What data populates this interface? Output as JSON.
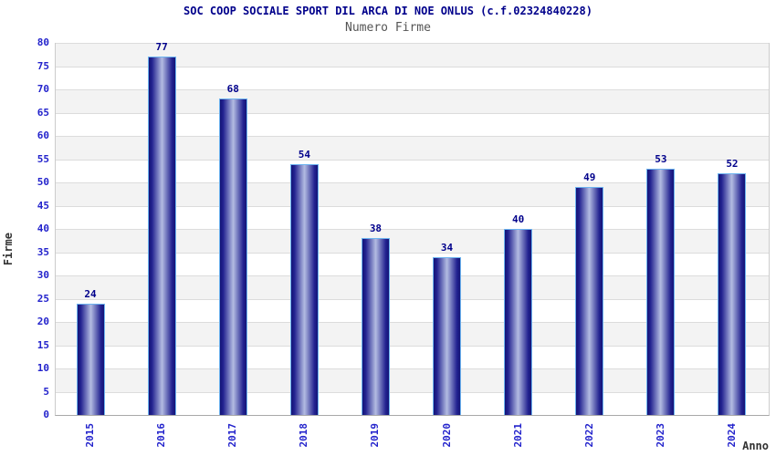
{
  "chart_data": {
    "type": "bar",
    "title": "SOC COOP SOCIALE SPORT DIL ARCA DI NOE ONLUS (c.f.02324840228)",
    "subtitle": "Numero Firme",
    "xlabel": "Anno",
    "ylabel": "Firme",
    "categories": [
      "2015",
      "2016",
      "2017",
      "2018",
      "2019",
      "2020",
      "2021",
      "2022",
      "2023",
      "2024"
    ],
    "values": [
      24,
      77,
      68,
      54,
      38,
      34,
      40,
      49,
      53,
      52
    ],
    "ylim": [
      0,
      80
    ],
    "ytick_step": 5,
    "yticks": [
      0,
      5,
      10,
      15,
      20,
      25,
      30,
      35,
      40,
      45,
      50,
      55,
      60,
      65,
      70,
      75,
      80
    ],
    "grid": "horizontal-gridlines-with-alternating-bands",
    "legend": "none",
    "value_labels": "above-bars",
    "colors": {
      "title": "#00008B",
      "subtitle": "#555555",
      "axis_tick": "#2323cc",
      "value_label": "#00008B",
      "axis_title": "#333333",
      "band": "#f3f3f3",
      "gridline": "#dcdcdc",
      "bar_dark": "#141476",
      "bar_mid": "#222290",
      "bar_light": "#b3bce2",
      "bar_border": "#6db4f0"
    }
  }
}
